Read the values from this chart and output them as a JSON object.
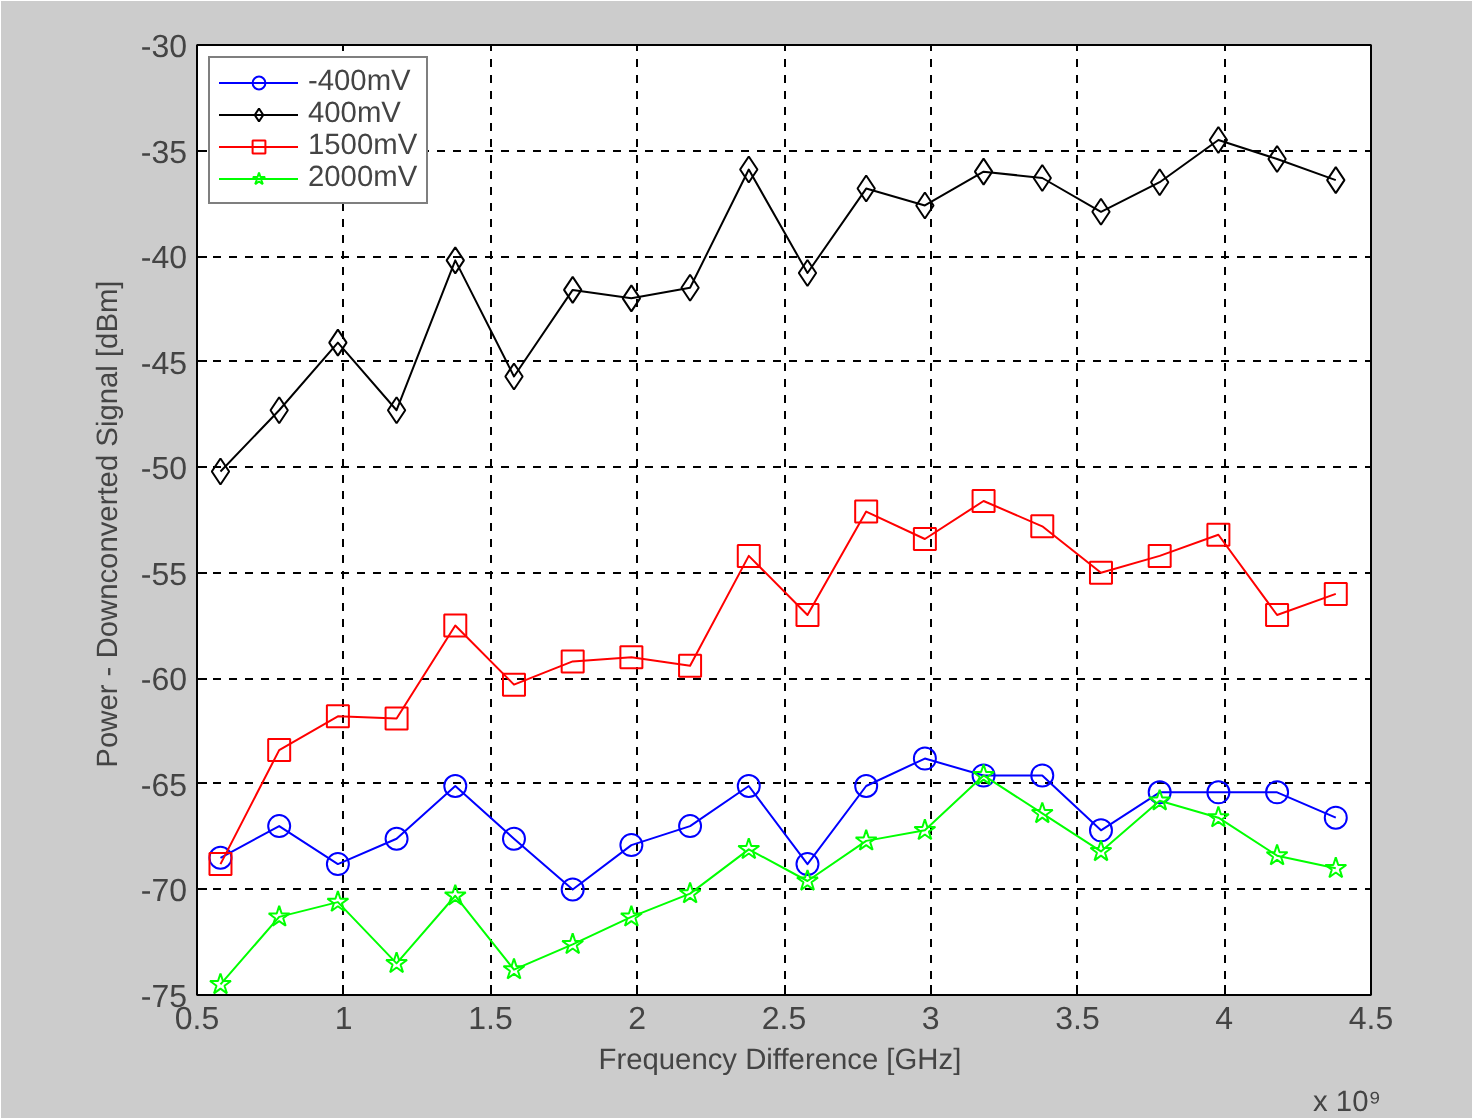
{
  "chart_data": {
    "type": "line",
    "xlabel": "Frequency Difference  [GHz]",
    "ylabel": "Power - Downconverted Signal  [dBm]",
    "x": [
      0.58,
      0.78,
      0.98,
      1.18,
      1.38,
      1.58,
      1.78,
      1.98,
      2.18,
      2.38,
      2.58,
      2.78,
      2.98,
      3.18,
      3.38,
      3.58,
      3.78,
      3.98,
      4.18,
      4.38
    ],
    "series": [
      {
        "name": "-400mV",
        "color": "#0000ff",
        "marker": "circle",
        "values": [
          -68.5,
          -67.0,
          -68.8,
          -67.6,
          -65.1,
          -67.6,
          -70.0,
          -67.9,
          -67.0,
          -65.1,
          -68.8,
          -65.1,
          -63.8,
          -64.6,
          -64.6,
          -67.2,
          -65.4,
          -65.4,
          -65.4,
          -66.6
        ]
      },
      {
        "name": "400mV",
        "color": "#000000",
        "marker": "diamond",
        "values": [
          -50.2,
          -47.3,
          -44.1,
          -47.3,
          -40.2,
          -45.7,
          -41.6,
          -42.0,
          -41.5,
          -35.9,
          -40.8,
          -36.8,
          -37.6,
          -36.0,
          -36.3,
          -37.9,
          -36.5,
          -34.5,
          -35.4,
          -36.4
        ]
      },
      {
        "name": "1500mV",
        "color": "#ff0000",
        "marker": "square",
        "values": [
          -68.8,
          -63.4,
          -61.8,
          -61.9,
          -57.5,
          -60.3,
          -59.2,
          -59.0,
          -59.4,
          -54.2,
          -57.0,
          -52.1,
          -53.4,
          -51.6,
          -52.8,
          -55.0,
          -54.2,
          -53.2,
          -57.0,
          -56.0
        ]
      },
      {
        "name": "2000mV",
        "color": "#00ff00",
        "marker": "star",
        "values": [
          -74.5,
          -71.3,
          -70.6,
          -73.5,
          -70.3,
          -73.8,
          -72.6,
          -71.3,
          -70.2,
          -68.1,
          -69.6,
          -67.7,
          -67.2,
          -64.6,
          -66.4,
          -68.2,
          -65.8,
          -66.6,
          -68.4,
          -69.0
        ]
      }
    ],
    "xlim": [
      0.5,
      4.5
    ],
    "xticks": [
      0.5,
      1,
      1.5,
      2,
      2.5,
      3,
      3.5,
      4,
      4.5
    ],
    "ylim": [
      -75,
      -30
    ],
    "yticks": [
      -75,
      -70,
      -65,
      -60,
      -55,
      -50,
      -45,
      -40,
      -35,
      -30
    ],
    "annotations": [
      "x 10⁹"
    ],
    "grid": true,
    "legend": "top left",
    "line_style": "solid"
  }
}
